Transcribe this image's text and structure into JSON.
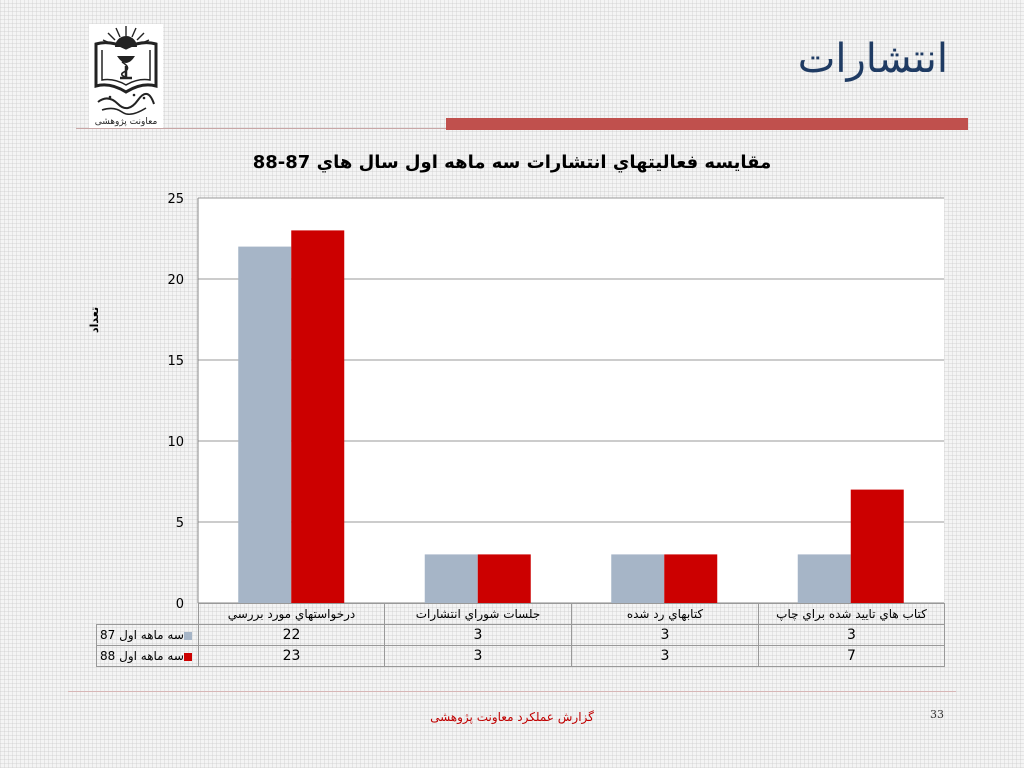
{
  "slide": {
    "title": "انتشارات",
    "logo_caption": "معاونت پژوهشی",
    "footer_text": "گزارش عملکرد معاونت پژوهشی",
    "page_number": "33"
  },
  "colors": {
    "series_87": "#a6b5c7",
    "series_88": "#cc0000",
    "title_blue": "#1f3b63",
    "accent_bar": "#c0504d"
  },
  "chart_data": {
    "type": "bar",
    "title": "مقايسه فعاليتهاي انتشارات سه ماهه اول سال هاي 87-88",
    "ylabel": "تعداد",
    "xlabel": "",
    "ylim": [
      0,
      25
    ],
    "yticks": [
      0,
      5,
      10,
      15,
      20,
      25
    ],
    "grid": true,
    "categories": [
      "درخواستهاي مورد بررسي",
      "جلسات شوراي انتشارات",
      "كتابهاي رد شده",
      "كتاب هاي تاييد شده براي چاپ"
    ],
    "series": [
      {
        "name": "سه ماهه اول 87",
        "values": [
          22,
          3,
          3,
          3
        ],
        "color": "#a6b5c7"
      },
      {
        "name": "سه ماهه اول 88",
        "values": [
          23,
          3,
          3,
          7
        ],
        "color": "#cc0000"
      }
    ]
  }
}
